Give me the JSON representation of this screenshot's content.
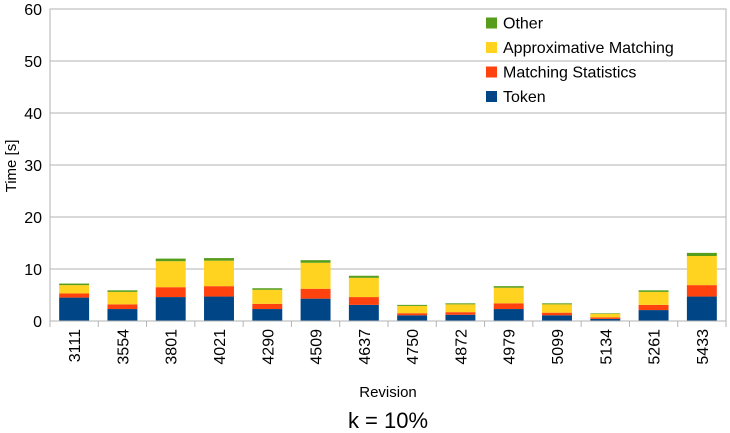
{
  "chart_data": {
    "type": "bar",
    "stacked": true,
    "title": "",
    "xlabel": "Revision",
    "ylabel": "Time [s]",
    "caption": "k = 10%",
    "ylim": [
      0,
      60
    ],
    "yticks": [
      0,
      10,
      20,
      30,
      40,
      50,
      60
    ],
    "grid": true,
    "legend_position": "top-right",
    "categories": [
      "3111",
      "3554",
      "3801",
      "4021",
      "4290",
      "4509",
      "4637",
      "4750",
      "4872",
      "4979",
      "5099",
      "5134",
      "5261",
      "5433"
    ],
    "series": [
      {
        "name": "Token",
        "color": "#004586",
        "values": [
          4.5,
          2.3,
          4.6,
          4.7,
          2.3,
          4.3,
          3.1,
          1.1,
          1.2,
          2.3,
          1.1,
          0.4,
          2.1,
          4.7
        ]
      },
      {
        "name": "Matching Statistics",
        "color": "#ff420e",
        "values": [
          0.8,
          0.9,
          1.9,
          2.0,
          1.0,
          1.9,
          1.5,
          0.4,
          0.5,
          1.1,
          0.5,
          0.3,
          1.0,
          2.2
        ]
      },
      {
        "name": "Approximative Matching",
        "color": "#ffd320",
        "values": [
          1.6,
          2.4,
          5.0,
          4.9,
          2.7,
          5.0,
          3.7,
          1.4,
          1.5,
          3.0,
          1.6,
          0.7,
          2.5,
          5.6
        ]
      },
      {
        "name": "Other",
        "color": "#579d1c",
        "values": [
          0.3,
          0.3,
          0.5,
          0.5,
          0.3,
          0.5,
          0.4,
          0.2,
          0.2,
          0.3,
          0.2,
          0.1,
          0.3,
          0.6
        ]
      }
    ],
    "legend_order": [
      "Other",
      "Approximative Matching",
      "Matching Statistics",
      "Token"
    ]
  }
}
